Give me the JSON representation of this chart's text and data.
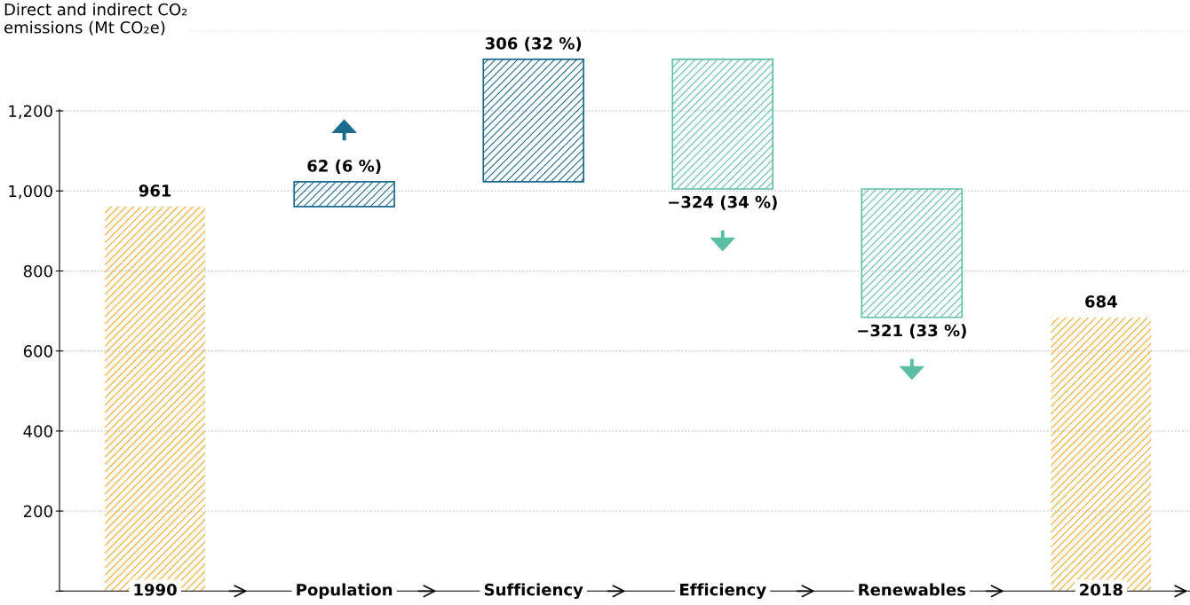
{
  "chart_data": {
    "type": "bar",
    "ylabel": "Direct and indirect CO₂\nemissions (Mt CO₂e)",
    "categories": [
      "1990",
      "Population",
      "Sufficiency",
      "Efficiency",
      "Renewables",
      "2018"
    ],
    "values": [
      961,
      62,
      306,
      -324,
      -321,
      684
    ],
    "base": [
      0,
      961,
      1023,
      1329,
      1005,
      0
    ],
    "colors": [
      "#f5a623",
      "#1a6b8f",
      "#1a6b8f",
      "#5cbfa5",
      "#5cbfa5",
      "#f5a623"
    ],
    "value_labels": [
      "961",
      "62 (6 %)",
      "306 (32 %)",
      "−324 (34 %)",
      "−321 (33 %)",
      "684"
    ],
    "ylim": [
      0,
      1400
    ],
    "yticks": [
      {
        "value": 0,
        "label": null
      },
      200,
      400,
      600,
      800,
      {
        "value": 1000,
        "label": "1,000"
      },
      {
        "value": 1200,
        "label": "1,200"
      },
      {
        "value": 1400,
        "label": null
      }
    ],
    "grid": "y"
  }
}
